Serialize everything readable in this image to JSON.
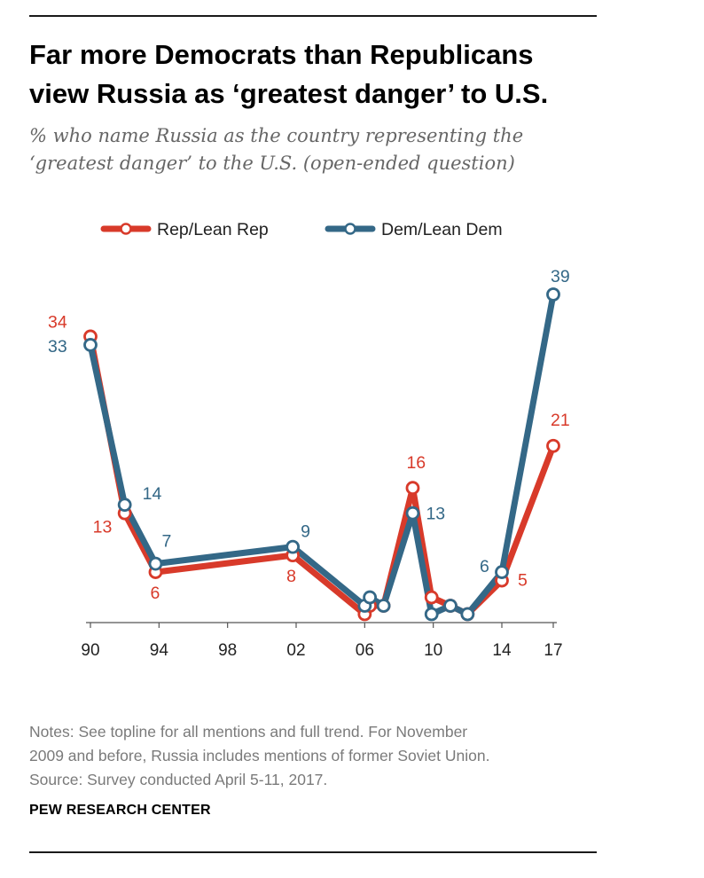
{
  "title_lines": [
    "Far more Democrats than Republicans",
    "view Russia as ‘greatest danger’ to U.S."
  ],
  "subtitle_lines": [
    "% who name Russia as the country representing the",
    "‘greatest danger’ to the U.S. (open-ended question)"
  ],
  "notes_lines": [
    "Notes: See topline for all mentions and full trend. For November",
    "2009 and before, Russia includes mentions of former Soviet Union.",
    "Source: Survey conducted April 5-11, 2017."
  ],
  "source": "PEW RESEARCH CENTER",
  "chart_data": {
    "type": "line",
    "title": "Far more Democrats than Republicans view Russia as ‘greatest danger’ to U.S.",
    "subtitle": "% who name Russia as the country representing the ‘greatest danger’ to the U.S. (open-ended question)",
    "xlim": [
      1990,
      2017
    ],
    "ylim": [
      0,
      39
    ],
    "x_ticks": [
      {
        "value": 1990,
        "label": "90"
      },
      {
        "value": 1994,
        "label": "94"
      },
      {
        "value": 1998,
        "label": "98"
      },
      {
        "value": 2002,
        "label": "02"
      },
      {
        "value": 2006,
        "label": "06"
      },
      {
        "value": 2010,
        "label": "10"
      },
      {
        "value": 2014,
        "label": "14"
      },
      {
        "value": 2017,
        "label": "17"
      }
    ],
    "grid": false,
    "legend_position": "top",
    "series": [
      {
        "name": "Rep/Lean Rep",
        "color": "#d83a2a",
        "points": [
          {
            "x": 1990.0,
            "y": 34
          },
          {
            "x": 1992.0,
            "y": 13,
            "label": "13"
          },
          {
            "x": 1993.8,
            "y": 6,
            "label": "6"
          },
          {
            "x": 2001.8,
            "y": 8,
            "label": "8"
          },
          {
            "x": 2006.0,
            "y": 1
          },
          {
            "x": 2006.3,
            "y": 2
          },
          {
            "x": 2007.1,
            "y": 2
          },
          {
            "x": 2008.8,
            "y": 16,
            "label": "16"
          },
          {
            "x": 2009.9,
            "y": 3
          },
          {
            "x": 2011.0,
            "y": 2
          },
          {
            "x": 2012.0,
            "y": 1
          },
          {
            "x": 2014.0,
            "y": 5,
            "label": "5"
          },
          {
            "x": 2017.0,
            "y": 21,
            "label": "21"
          }
        ]
      },
      {
        "name": "Dem/Lean Dem",
        "color": "#346887",
        "points": [
          {
            "x": 1990.0,
            "y": 33,
            "label": "33"
          },
          {
            "x": 1992.0,
            "y": 14,
            "label": "14"
          },
          {
            "x": 1993.8,
            "y": 7,
            "label": "7"
          },
          {
            "x": 2001.8,
            "y": 9,
            "label": "9"
          },
          {
            "x": 2006.0,
            "y": 2
          },
          {
            "x": 2006.3,
            "y": 3
          },
          {
            "x": 2007.1,
            "y": 2
          },
          {
            "x": 2008.8,
            "y": 13,
            "label": "13"
          },
          {
            "x": 2009.9,
            "y": 1
          },
          {
            "x": 2011.0,
            "y": 2
          },
          {
            "x": 2012.0,
            "y": 1
          },
          {
            "x": 2014.0,
            "y": 6,
            "label": "6"
          },
          {
            "x": 2017.0,
            "y": 39,
            "label": "39"
          }
        ]
      }
    ],
    "label_one": "34"
  }
}
